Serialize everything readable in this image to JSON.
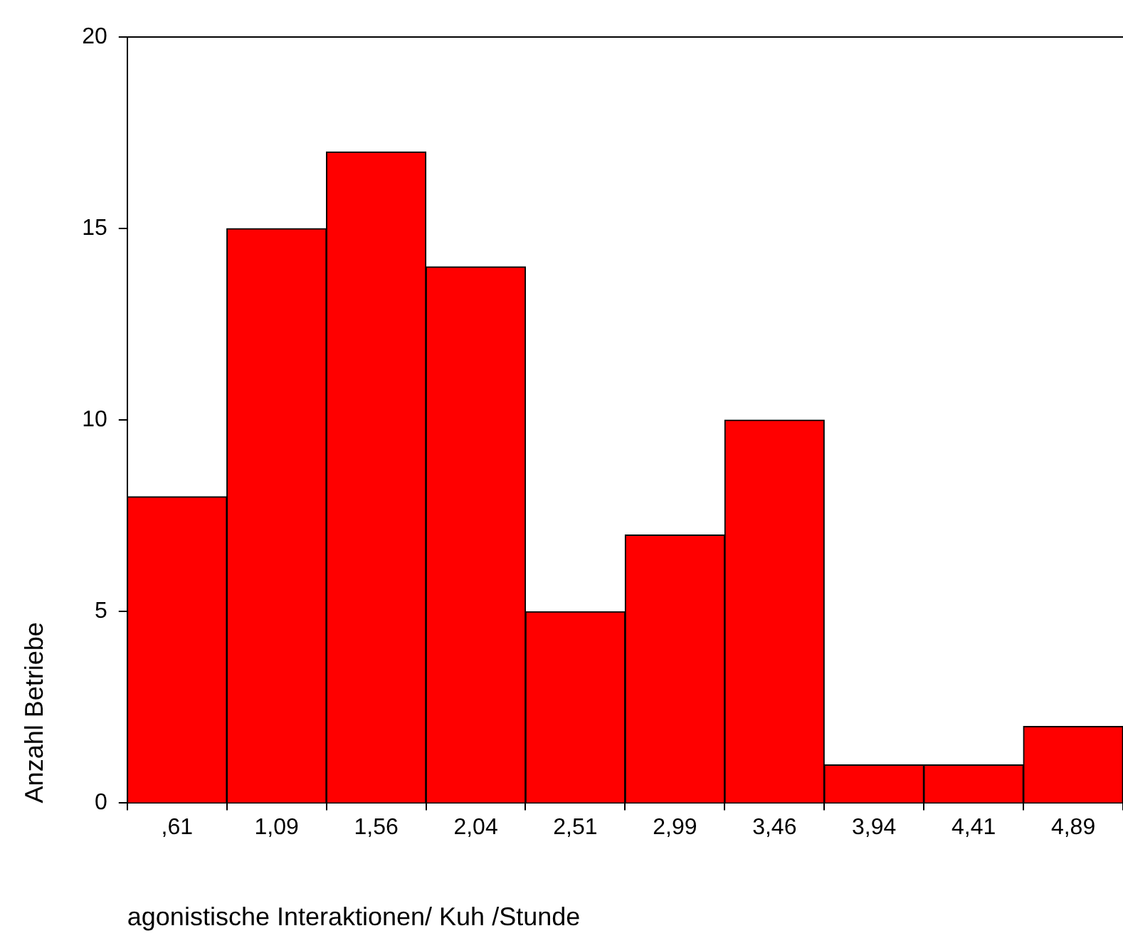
{
  "chart_data": {
    "type": "bar",
    "xlabel": "agonistische Interaktionen/ Kuh /Stunde",
    "ylabel": "Anzahl Betriebe",
    "categories": [
      ",61",
      "1,09",
      "1,56",
      "2,04",
      "2,51",
      "2,99",
      "3,46",
      "3,94",
      "4,41",
      "4,89"
    ],
    "values": [
      8,
      15,
      17,
      14,
      5,
      7,
      10,
      1,
      1,
      2
    ],
    "color": "#ff0000",
    "ylim": [
      0,
      20
    ],
    "yticks": [
      0,
      5,
      10,
      15,
      20
    ],
    "grid": false,
    "legend": false
  }
}
